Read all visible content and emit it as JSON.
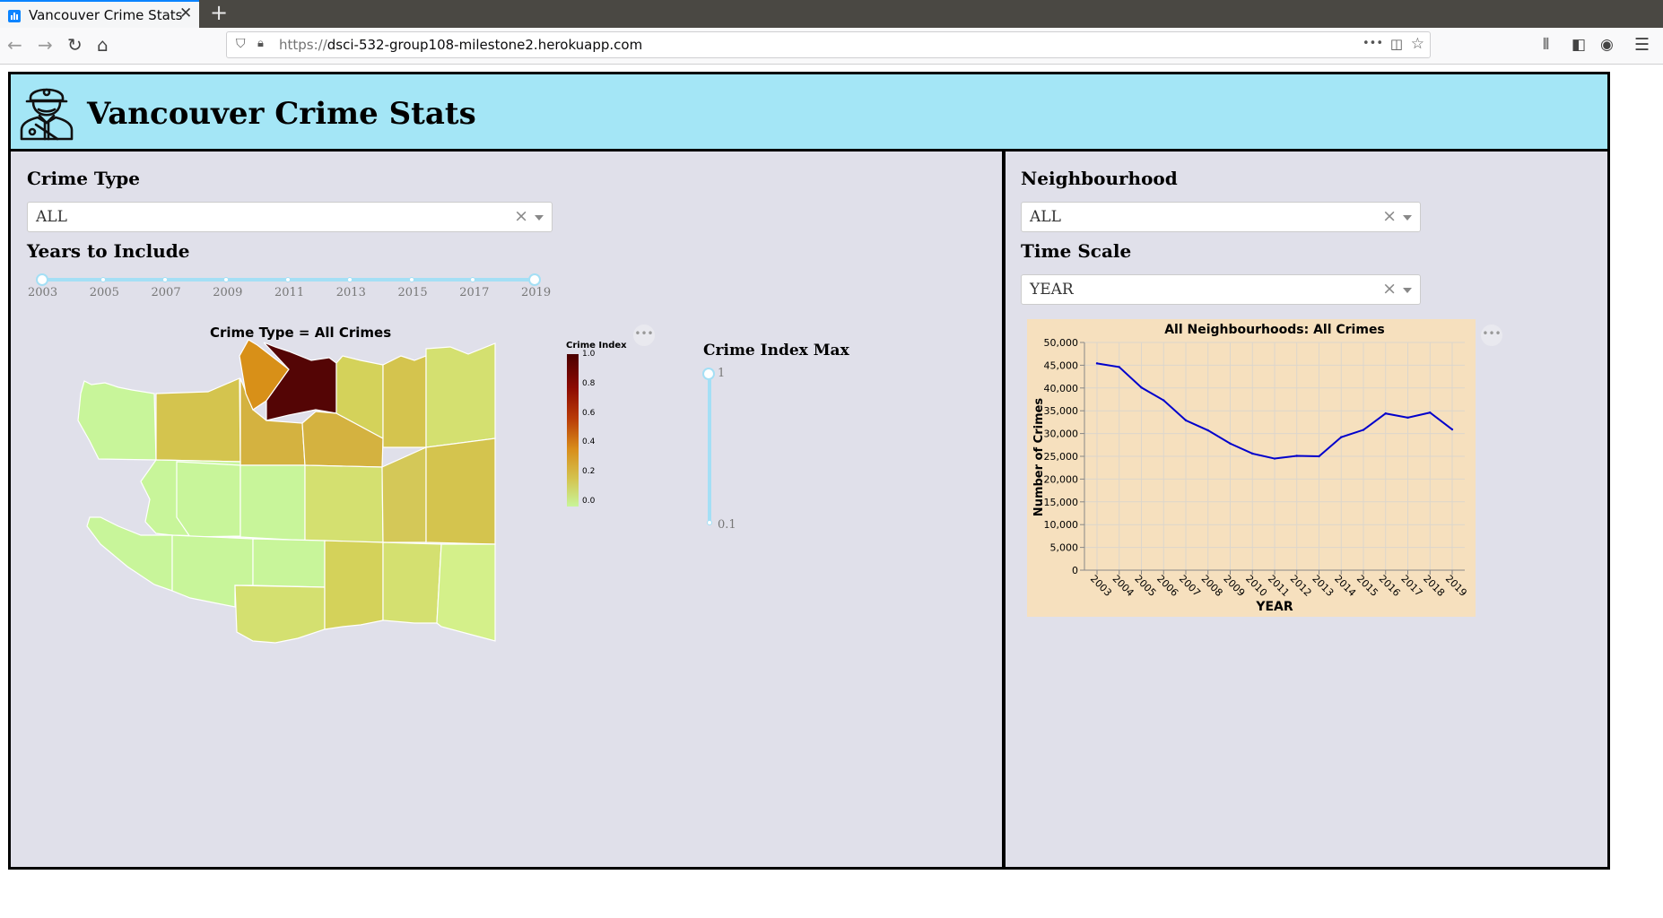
{
  "browser": {
    "tab_title": "Vancouver Crime Stats",
    "tab_close": "✕",
    "new_tab": "+",
    "url_prefix": "https://",
    "url_host": "dsci-532-group108-milestone2.herokuapp.com",
    "url_more": "•••"
  },
  "header": {
    "title": "Vancouver Crime Stats"
  },
  "left": {
    "crime_type_label": "Crime Type",
    "crime_type_value": "ALL",
    "years_label": "Years to Include",
    "year_ticks": [
      "2003",
      "2005",
      "2007",
      "2009",
      "2011",
      "2013",
      "2015",
      "2017",
      "2019"
    ],
    "year_range": [
      2003,
      2019
    ],
    "map_title": "Crime Type = All Crimes",
    "legend_title": "Crime Index",
    "legend_ticks": [
      "1.0",
      "0.8",
      "0.6",
      "0.4",
      "0.2",
      "0.0"
    ],
    "index_max_label": "Crime Index Max",
    "index_max_top": "1",
    "index_max_bottom": "0.1",
    "index_max_value": 1
  },
  "right": {
    "neighbourhood_label": "Neighbourhood",
    "neighbourhood_value": "ALL",
    "time_scale_label": "Time Scale",
    "time_scale_value": "YEAR",
    "clear_symbol": "×"
  },
  "colors": {
    "header_bg": "#a4e6f6",
    "panel_bg": "#e0e0ea",
    "chart_bg": "#f6e0be",
    "line": "#0000cc",
    "slider": "#a4dff5"
  },
  "chart_data": {
    "type": "line",
    "title": "All Neighbourhoods: All Crimes",
    "xlabel": "YEAR",
    "ylabel": "Number of Crimes",
    "x": [
      "2003",
      "2004",
      "2005",
      "2006",
      "2007",
      "2008",
      "2009",
      "2010",
      "2011",
      "2012",
      "2013",
      "2014",
      "2015",
      "2016",
      "2017",
      "2018",
      "2019"
    ],
    "series": [
      {
        "values": [
          45400,
          44600,
          40100,
          37300,
          32900,
          30700,
          27800,
          25600,
          24500,
          25100,
          25000,
          29200,
          30800,
          34400,
          33500,
          34600,
          30900
        ]
      }
    ],
    "ylim": [
      0,
      50000
    ],
    "yticks": [
      "0",
      "5,000",
      "10,000",
      "15,000",
      "20,000",
      "25,000",
      "30,000",
      "35,000",
      "40,000",
      "45,000",
      "50,000"
    ],
    "grid": true
  }
}
